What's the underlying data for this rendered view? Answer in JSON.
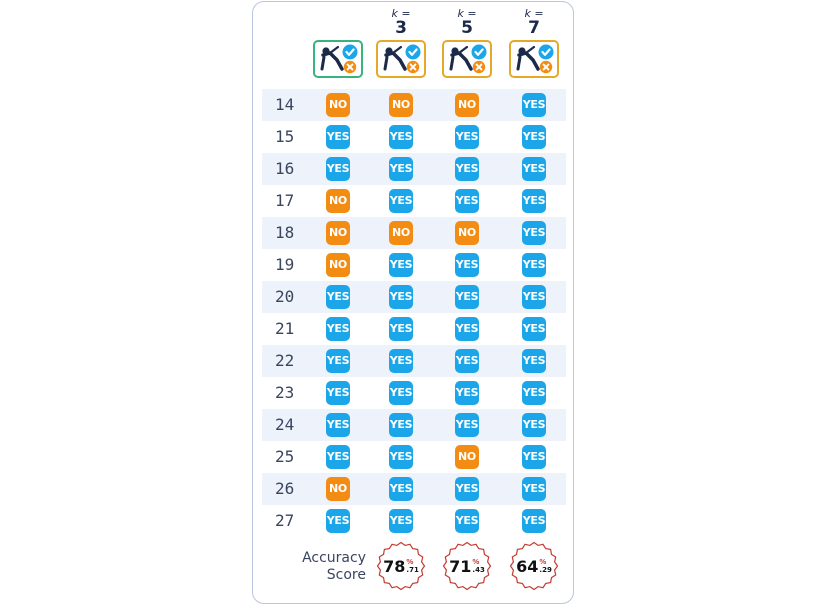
{
  "columns": [
    {
      "id": "baseline",
      "k_prefix": "",
      "k_value": ""
    },
    {
      "id": "k3",
      "k_prefix": "k =",
      "k_value": "3"
    },
    {
      "id": "k5",
      "k_prefix": "k =",
      "k_value": "5"
    },
    {
      "id": "k7",
      "k_prefix": "k =",
      "k_value": "7"
    }
  ],
  "rows": [
    {
      "n": "14",
      "v": [
        "NO",
        "NO",
        "NO",
        "YES"
      ]
    },
    {
      "n": "15",
      "v": [
        "YES",
        "YES",
        "YES",
        "YES"
      ]
    },
    {
      "n": "16",
      "v": [
        "YES",
        "YES",
        "YES",
        "YES"
      ]
    },
    {
      "n": "17",
      "v": [
        "NO",
        "YES",
        "YES",
        "YES"
      ]
    },
    {
      "n": "18",
      "v": [
        "NO",
        "NO",
        "NO",
        "YES"
      ]
    },
    {
      "n": "19",
      "v": [
        "NO",
        "YES",
        "YES",
        "YES"
      ]
    },
    {
      "n": "20",
      "v": [
        "YES",
        "YES",
        "YES",
        "YES"
      ]
    },
    {
      "n": "21",
      "v": [
        "YES",
        "YES",
        "YES",
        "YES"
      ]
    },
    {
      "n": "22",
      "v": [
        "YES",
        "YES",
        "YES",
        "YES"
      ]
    },
    {
      "n": "23",
      "v": [
        "YES",
        "YES",
        "YES",
        "YES"
      ]
    },
    {
      "n": "24",
      "v": [
        "YES",
        "YES",
        "YES",
        "YES"
      ]
    },
    {
      "n": "25",
      "v": [
        "YES",
        "YES",
        "NO",
        "YES"
      ]
    },
    {
      "n": "26",
      "v": [
        "NO",
        "YES",
        "YES",
        "YES"
      ]
    },
    {
      "n": "27",
      "v": [
        "YES",
        "YES",
        "YES",
        "YES"
      ]
    }
  ],
  "accuracy": {
    "label_line1": "Accuracy",
    "label_line2": "Score",
    "scores": [
      {
        "whole": "78",
        "pct": "%",
        "frac": ".71"
      },
      {
        "whole": "71",
        "pct": "%",
        "frac": ".43"
      },
      {
        "whole": "64",
        "pct": "%",
        "frac": ".29"
      }
    ]
  },
  "colors": {
    "yes": "#1aa6e8",
    "no": "#f28c12",
    "baseline_border": "#36b37e",
    "knn_border": "#e5a92a",
    "seal": "#c33a32"
  },
  "icon": "golfer-check-cross-icon"
}
